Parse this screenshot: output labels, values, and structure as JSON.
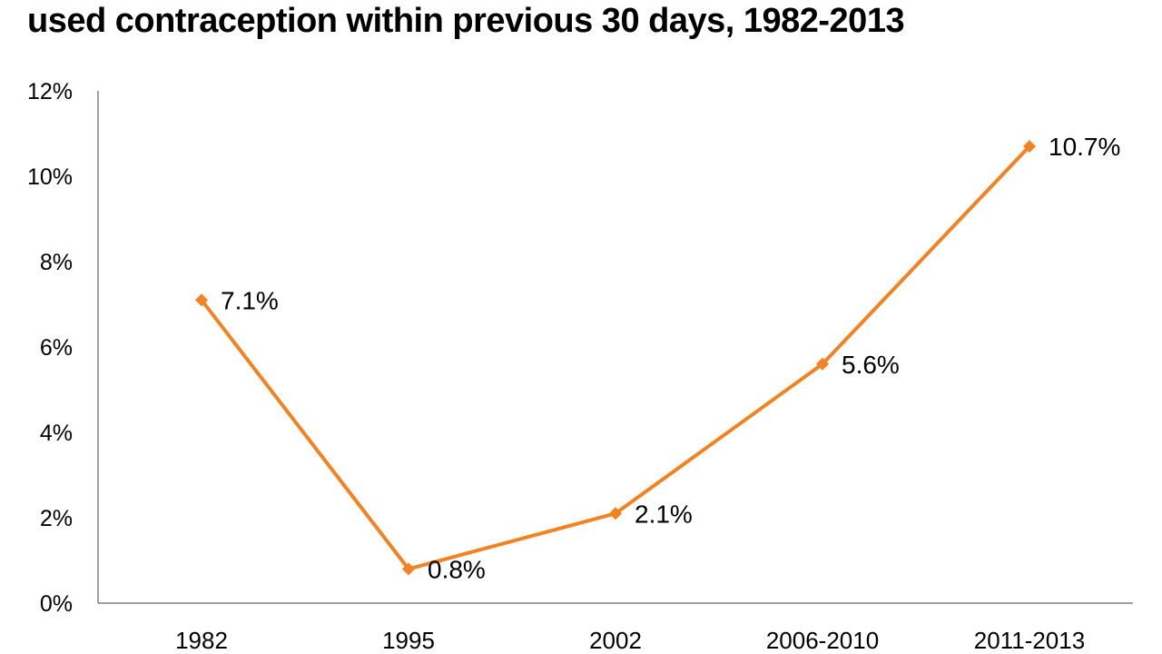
{
  "page": {
    "background": "#ffffff"
  },
  "chart_data": {
    "type": "line",
    "title": "used contraception within previous 30 days, 1982-2013",
    "categories": [
      "1982",
      "1995",
      "2002",
      "2006-2010",
      "2011-2013"
    ],
    "values": [
      7.1,
      0.8,
      2.1,
      5.6,
      10.7
    ],
    "point_labels": [
      "7.1%",
      "0.8%",
      "2.1%",
      "5.6%",
      "10.7%"
    ],
    "xlabel": "",
    "ylabel": "",
    "ylim": [
      0,
      12
    ],
    "ytick_values": [
      0,
      2,
      4,
      6,
      8,
      10,
      12
    ],
    "ytick_labels": [
      "0%",
      "2%",
      "4%",
      "6%",
      "8%",
      "10%",
      "12%"
    ],
    "grid": false,
    "legend": false,
    "marker": "diamond",
    "series_color": "#F58220",
    "axis_color": "#808080",
    "text_color": "#000000"
  }
}
